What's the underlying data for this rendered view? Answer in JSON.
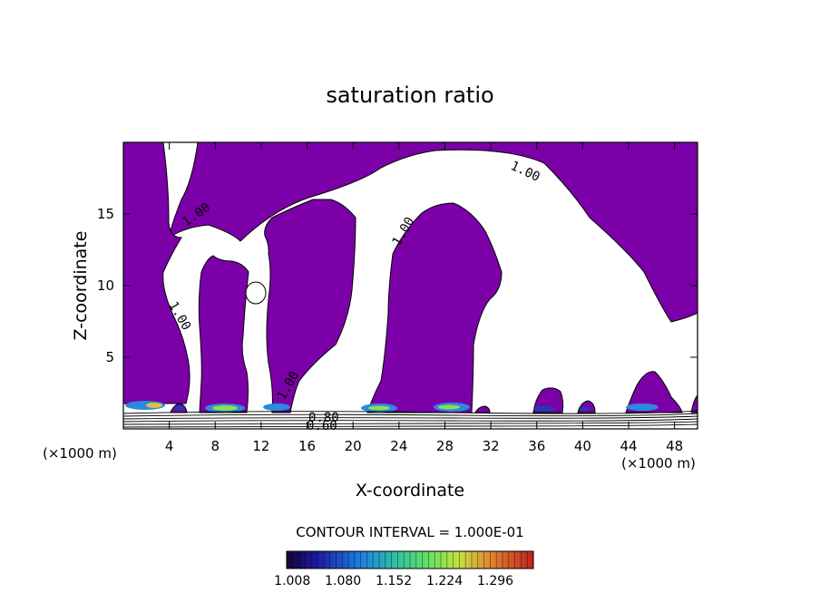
{
  "chart_data": {
    "type": "contour",
    "title": "saturation ratio",
    "xlabel": "X-coordinate",
    "ylabel": "Z-coordinate",
    "x_unit": "(×1000 m)",
    "z_unit": "(×1000 m)",
    "xlim": [
      0,
      50
    ],
    "ylim": [
      0,
      20
    ],
    "x_ticks": [
      4,
      8,
      12,
      16,
      20,
      24,
      28,
      32,
      36,
      40,
      44,
      48
    ],
    "y_ticks": [
      5,
      10,
      15
    ],
    "contour_interval_text": "CONTOUR INTERVAL = 1.000E-01",
    "contour_labels": [
      {
        "text": "1.00",
        "x": 5.5,
        "z": 14.3
      },
      {
        "text": "1.00",
        "x": 4.9,
        "z": 7.9
      },
      {
        "text": "1.00",
        "x": 15.0,
        "z": 2.7
      },
      {
        "text": "1.00",
        "x": 24.6,
        "z": 13.9
      },
      {
        "text": "1.00",
        "x": 35.2,
        "z": 17.9
      },
      {
        "text": "0.80",
        "x": 17.1,
        "z": 0.7
      },
      {
        "text": "0.60",
        "x": 17.1,
        "z": 0.15
      }
    ],
    "colorbar": {
      "ticks": [
        "1.008",
        "1.080",
        "1.152",
        "1.224",
        "1.296"
      ],
      "min": 1.0,
      "max": 1.35
    },
    "fill_color": "#7b00a8"
  }
}
